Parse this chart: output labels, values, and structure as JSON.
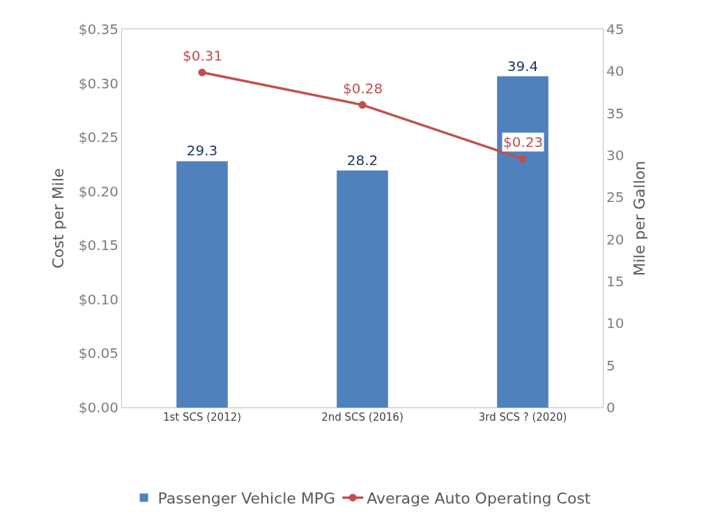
{
  "chart_data": {
    "type": "bar",
    "ylabel": "Cost per Mile",
    "y2label": "Mile per Gallon",
    "categories": [
      "1st SCS (2012)",
      "2nd SCS (2016)",
      "3rd SCS ? (2020)"
    ],
    "series": [
      {
        "name": "Passenger Vehicle MPG",
        "axis": "y2",
        "color": "#4f81bd",
        "values": [
          29.3,
          28.2,
          39.4
        ],
        "value_labels": [
          "29.3",
          "28.2",
          "39.4"
        ]
      },
      {
        "name": "Average Auto Operating Cost",
        "type": "line",
        "color": "#c0504d",
        "marker": "circle",
        "values": [
          0.31,
          0.28,
          0.23
        ],
        "value_labels": [
          "$0.31",
          "$0.28",
          "$0.23"
        ]
      }
    ],
    "ylim": [
      0,
      0.35
    ],
    "yticks": [
      {
        "value": 0,
        "label": "$0.00"
      },
      {
        "value": 0.05,
        "label": "$0.05"
      },
      {
        "value": 0.1,
        "label": "$0.10"
      },
      {
        "value": 0.15,
        "label": "$0.15"
      },
      {
        "value": 0.2,
        "label": "$0.20"
      },
      {
        "value": 0.25,
        "label": "$0.25"
      },
      {
        "value": 0.3,
        "label": "$0.30"
      },
      {
        "value": 0.35,
        "label": "$0.35"
      }
    ],
    "y2lim": [
      0,
      45
    ],
    "y2ticks": [
      0,
      5,
      10,
      15,
      20,
      25,
      30,
      35,
      40,
      45
    ],
    "legend": "bottom"
  }
}
